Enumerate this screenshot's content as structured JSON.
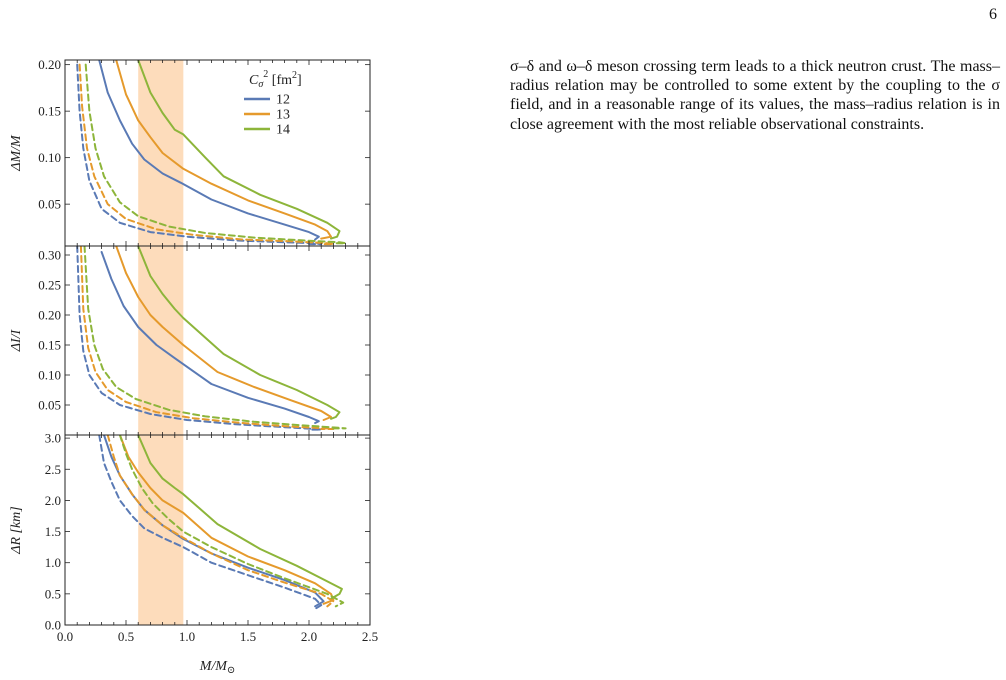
{
  "page_number": "6",
  "paragraph": "σ–δ and ω–δ meson crossing term leads to a thick neutron crust. The mass–radius relation may be controlled to some extent by the coupling to the σ field, and in a reasonable range of its values, the mass–radius relation is in close agreement with the most reliable observational constraints.",
  "colors": {
    "series_12": "#5a7ab5",
    "series_13": "#e59a2c",
    "series_14": "#8db53a",
    "band": "#fddcbb",
    "axis": "#222222"
  },
  "chart_data": [
    {
      "type": "line",
      "ylabel": "ΔM/M",
      "xlim": [
        0,
        2.5
      ],
      "ylim": [
        0.005,
        0.205
      ],
      "yticks": [
        0.05,
        0.1,
        0.15,
        0.2
      ],
      "ytick_labels": [
        "0.05",
        "0.10",
        "0.15",
        "0.20"
      ],
      "shaded_band": [
        0.6,
        0.97
      ],
      "legend": {
        "title_symbol": "C",
        "title_sub": "σ",
        "title_sup": "2",
        "title_unit": "[fm",
        "title_unit_sup": "2",
        "title_unit_close": "]",
        "position": "top-right",
        "entries": [
          "12",
          "13",
          "14"
        ]
      },
      "series": [
        {
          "name": "12",
          "style": "solid",
          "x": [
            0.28,
            0.35,
            0.45,
            0.55,
            0.65,
            0.8,
            0.95,
            1.2,
            1.5,
            1.8,
            2.0,
            2.08,
            2.05
          ],
          "y": [
            0.205,
            0.17,
            0.14,
            0.115,
            0.098,
            0.083,
            0.073,
            0.055,
            0.04,
            0.028,
            0.02,
            0.015,
            0.012
          ]
        },
        {
          "name": "13",
          "style": "solid",
          "x": [
            0.42,
            0.5,
            0.6,
            0.7,
            0.8,
            0.97,
            1.2,
            1.5,
            1.8,
            2.05,
            2.15,
            2.18,
            2.1
          ],
          "y": [
            0.205,
            0.168,
            0.14,
            0.122,
            0.105,
            0.088,
            0.072,
            0.054,
            0.04,
            0.028,
            0.021,
            0.015,
            0.013
          ]
        },
        {
          "name": "14",
          "style": "solid",
          "x": [
            0.6,
            0.7,
            0.8,
            0.9,
            0.97,
            1.15,
            1.3,
            1.6,
            1.9,
            2.15,
            2.25,
            2.23,
            2.18
          ],
          "y": [
            0.205,
            0.17,
            0.148,
            0.13,
            0.125,
            0.1,
            0.08,
            0.06,
            0.045,
            0.03,
            0.021,
            0.015,
            0.013
          ]
        },
        {
          "name": "",
          "style": "dashed",
          "color_key": "series_12",
          "x": [
            0.1,
            0.12,
            0.15,
            0.2,
            0.3,
            0.45,
            0.7,
            1.0,
            1.4,
            1.8,
            2.05,
            2.1,
            2.0
          ],
          "y": [
            0.2,
            0.15,
            0.11,
            0.075,
            0.045,
            0.03,
            0.02,
            0.015,
            0.011,
            0.009,
            0.008,
            0.007,
            0.007
          ]
        },
        {
          "name": "",
          "style": "dashed",
          "color_key": "series_13",
          "x": [
            0.12,
            0.14,
            0.18,
            0.24,
            0.35,
            0.5,
            0.75,
            1.05,
            1.45,
            1.85,
            2.15,
            2.2,
            2.1
          ],
          "y": [
            0.2,
            0.155,
            0.11,
            0.08,
            0.05,
            0.034,
            0.023,
            0.017,
            0.012,
            0.01,
            0.008,
            0.007,
            0.007
          ]
        },
        {
          "name": "",
          "style": "dashed",
          "color_key": "series_14",
          "x": [
            0.17,
            0.2,
            0.25,
            0.32,
            0.45,
            0.6,
            0.85,
            1.15,
            1.55,
            1.95,
            2.25,
            2.3,
            2.2
          ],
          "y": [
            0.2,
            0.15,
            0.11,
            0.08,
            0.052,
            0.037,
            0.026,
            0.019,
            0.014,
            0.011,
            0.009,
            0.008,
            0.008
          ]
        }
      ]
    },
    {
      "type": "line",
      "ylabel": "ΔI/I",
      "xlim": [
        0,
        2.5
      ],
      "ylim": [
        0.0,
        0.315
      ],
      "yticks": [
        0.05,
        0.1,
        0.15,
        0.2,
        0.25,
        0.3
      ],
      "ytick_labels": [
        "0.05",
        "0.10",
        "0.15",
        "0.20",
        "0.25",
        "0.30"
      ],
      "shaded_band": [
        0.6,
        0.97
      ],
      "series": [
        {
          "name": "12",
          "style": "solid",
          "x": [
            0.3,
            0.38,
            0.48,
            0.6,
            0.75,
            0.9,
            1.2,
            1.5,
            1.8,
            2.0,
            2.08,
            2.05
          ],
          "y": [
            0.305,
            0.26,
            0.215,
            0.18,
            0.15,
            0.128,
            0.085,
            0.062,
            0.044,
            0.03,
            0.023,
            0.02
          ]
        },
        {
          "name": "13",
          "style": "solid",
          "x": [
            0.42,
            0.5,
            0.6,
            0.7,
            0.8,
            0.97,
            1.25,
            1.55,
            1.85,
            2.1,
            2.18,
            2.12
          ],
          "y": [
            0.315,
            0.27,
            0.23,
            0.2,
            0.18,
            0.15,
            0.105,
            0.08,
            0.058,
            0.04,
            0.03,
            0.025
          ]
        },
        {
          "name": "14",
          "style": "solid",
          "x": [
            0.6,
            0.7,
            0.8,
            0.9,
            0.97,
            1.3,
            1.6,
            1.9,
            2.15,
            2.25,
            2.22,
            2.18
          ],
          "y": [
            0.315,
            0.265,
            0.235,
            0.21,
            0.195,
            0.135,
            0.1,
            0.075,
            0.05,
            0.038,
            0.03,
            0.027
          ]
        },
        {
          "name": "",
          "style": "dashed",
          "color_key": "series_12",
          "x": [
            0.1,
            0.12,
            0.15,
            0.2,
            0.3,
            0.45,
            0.7,
            1.0,
            1.4,
            1.8,
            2.05,
            2.1,
            2.0
          ],
          "y": [
            0.315,
            0.2,
            0.14,
            0.1,
            0.07,
            0.05,
            0.035,
            0.025,
            0.018,
            0.013,
            0.01,
            0.009,
            0.009
          ]
        },
        {
          "name": "",
          "style": "dashed",
          "color_key": "series_13",
          "x": [
            0.13,
            0.15,
            0.19,
            0.25,
            0.35,
            0.5,
            0.75,
            1.05,
            1.45,
            1.85,
            2.15,
            2.2,
            2.1
          ],
          "y": [
            0.315,
            0.21,
            0.145,
            0.105,
            0.075,
            0.055,
            0.038,
            0.028,
            0.02,
            0.014,
            0.011,
            0.01,
            0.01
          ]
        },
        {
          "name": "",
          "style": "dashed",
          "color_key": "series_14",
          "x": [
            0.16,
            0.19,
            0.24,
            0.31,
            0.42,
            0.58,
            0.85,
            1.15,
            1.55,
            1.95,
            2.25,
            2.3,
            2.2
          ],
          "y": [
            0.315,
            0.21,
            0.15,
            0.11,
            0.08,
            0.06,
            0.042,
            0.031,
            0.022,
            0.016,
            0.012,
            0.011,
            0.011
          ]
        }
      ]
    },
    {
      "type": "line",
      "ylabel": "ΔR [km]",
      "xlabel": "M/M",
      "xlabel_sub": "⊙",
      "xlim": [
        0,
        2.5
      ],
      "ylim": [
        0.0,
        3.05
      ],
      "xticks": [
        0.0,
        0.5,
        1.0,
        1.5,
        2.0,
        2.5
      ],
      "xtick_labels": [
        "0.0",
        "0.5",
        "1.0",
        "1.5",
        "2.0",
        "2.5"
      ],
      "yticks": [
        0.0,
        0.5,
        1.0,
        1.5,
        2.0,
        2.5,
        3.0
      ],
      "ytick_labels": [
        "0.0",
        "0.5",
        "1.0",
        "1.5",
        "2.0",
        "2.5",
        "3.0"
      ],
      "shaded_band": [
        0.6,
        0.97
      ],
      "series": [
        {
          "name": "12",
          "style": "solid",
          "x": [
            0.32,
            0.38,
            0.45,
            0.55,
            0.65,
            0.8,
            0.97,
            1.2,
            1.5,
            1.8,
            2.05,
            2.12,
            2.05
          ],
          "y": [
            3.05,
            2.7,
            2.4,
            2.1,
            1.85,
            1.6,
            1.38,
            1.15,
            0.92,
            0.72,
            0.52,
            0.38,
            0.3
          ]
        },
        {
          "name": "13",
          "style": "solid",
          "x": [
            0.45,
            0.52,
            0.6,
            0.7,
            0.8,
            0.97,
            1.2,
            1.5,
            1.8,
            2.05,
            2.18,
            2.2,
            2.12
          ],
          "y": [
            3.05,
            2.7,
            2.45,
            2.2,
            2.0,
            1.8,
            1.4,
            1.1,
            0.88,
            0.67,
            0.5,
            0.4,
            0.34
          ]
        },
        {
          "name": "14",
          "style": "solid",
          "x": [
            0.6,
            0.7,
            0.8,
            0.9,
            0.97,
            1.25,
            1.6,
            1.9,
            2.15,
            2.27,
            2.25,
            2.18
          ],
          "y": [
            3.05,
            2.6,
            2.35,
            2.2,
            2.1,
            1.62,
            1.22,
            0.95,
            0.7,
            0.58,
            0.5,
            0.42
          ]
        },
        {
          "name": "",
          "style": "dashed",
          "color_key": "series_12",
          "x": [
            0.28,
            0.32,
            0.38,
            0.45,
            0.55,
            0.65,
            0.8,
            0.97,
            1.2,
            1.5,
            1.8,
            2.05,
            2.1,
            2.05
          ],
          "y": [
            3.05,
            2.6,
            2.3,
            2.0,
            1.75,
            1.55,
            1.4,
            1.25,
            1.0,
            0.8,
            0.6,
            0.42,
            0.32,
            0.26
          ]
        },
        {
          "name": "",
          "style": "dashed",
          "color_key": "series_13",
          "x": [
            0.35,
            0.4,
            0.45,
            0.55,
            0.65,
            0.8,
            0.97,
            1.2,
            1.5,
            1.8,
            2.1,
            2.2,
            2.15
          ],
          "y": [
            3.05,
            2.7,
            2.4,
            2.1,
            1.85,
            1.6,
            1.4,
            1.15,
            0.88,
            0.68,
            0.5,
            0.38,
            0.3
          ]
        },
        {
          "name": "",
          "style": "dashed",
          "color_key": "series_14",
          "x": [
            0.45,
            0.5,
            0.55,
            0.63,
            0.72,
            0.85,
            0.97,
            1.2,
            1.5,
            1.8,
            2.15,
            2.28,
            2.22
          ],
          "y": [
            3.05,
            2.75,
            2.5,
            2.2,
            1.95,
            1.7,
            1.5,
            1.25,
            0.98,
            0.75,
            0.5,
            0.36,
            0.3
          ]
        }
      ]
    }
  ]
}
